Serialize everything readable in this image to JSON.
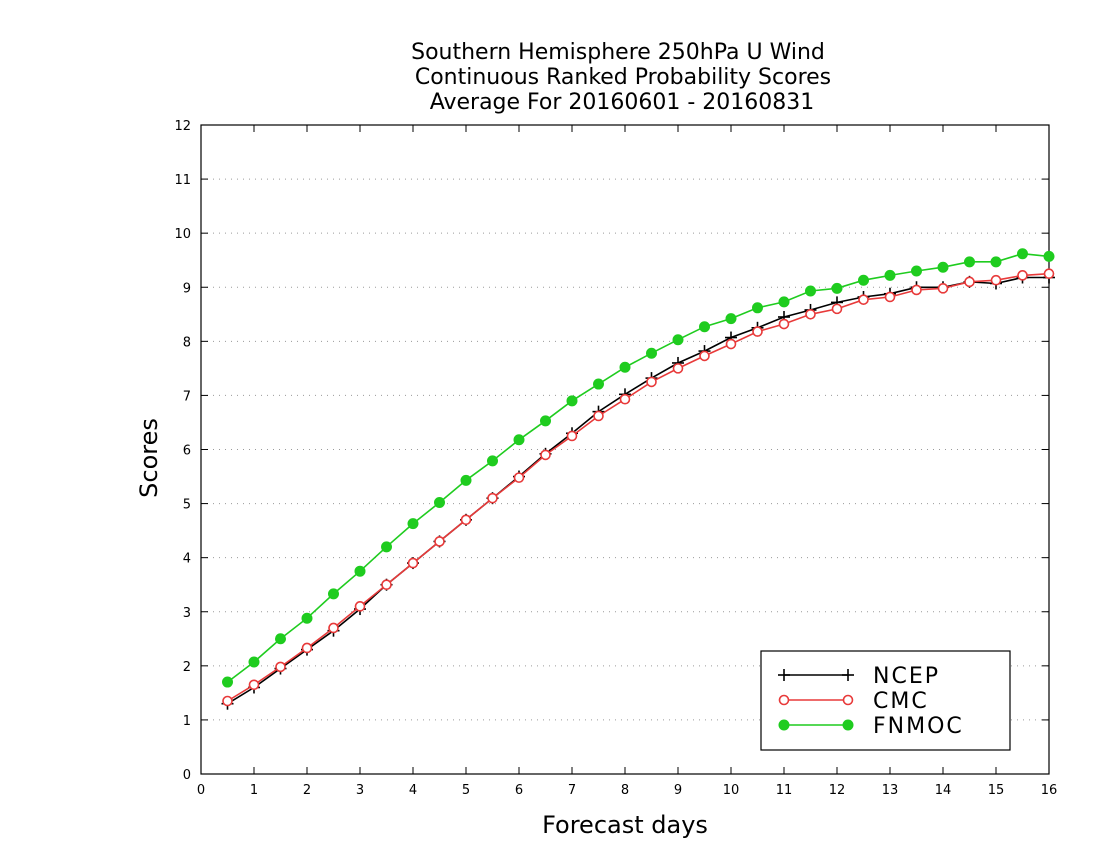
{
  "chart_data": {
    "type": "line",
    "title_lines": [
      "Southern Hemisphere 250hPa U Wind",
      "Continuous Ranked Probability Scores",
      "Average For 20160601 - 20160831"
    ],
    "xlabel": "Forecast days",
    "ylabel": "Scores",
    "xlim": [
      0,
      16
    ],
    "ylim": [
      0,
      12
    ],
    "x_ticks": [
      "0",
      "1",
      "2",
      "3",
      "4",
      "5",
      "6",
      "7",
      "8",
      "9",
      "10",
      "11",
      "12",
      "13",
      "14",
      "15",
      "16"
    ],
    "y_ticks": [
      "0",
      "1",
      "2",
      "3",
      "4",
      "5",
      "6",
      "7",
      "8",
      "9",
      "10",
      "11",
      "12"
    ],
    "grid": "horizontal dotted",
    "legend_position": "bottom-right",
    "x": [
      0.5,
      1,
      1.5,
      2,
      2.5,
      3,
      3.5,
      4,
      4.5,
      5,
      5.5,
      6,
      6.5,
      7,
      7.5,
      8,
      8.5,
      9,
      9.5,
      10,
      10.5,
      11,
      11.5,
      12,
      12.5,
      13,
      13.5,
      14,
      14.5,
      15,
      15.5,
      16
    ],
    "series": [
      {
        "name": "NCEP",
        "color": "#000000",
        "marker": "plus",
        "values": [
          1.3,
          1.6,
          1.95,
          2.3,
          2.65,
          3.05,
          3.5,
          3.9,
          4.3,
          4.7,
          5.1,
          5.5,
          5.92,
          6.3,
          6.7,
          7.02,
          7.32,
          7.6,
          7.82,
          8.07,
          8.25,
          8.45,
          8.58,
          8.72,
          8.82,
          8.88,
          9.0,
          9.0,
          9.1,
          9.07,
          9.18,
          9.18
        ]
      },
      {
        "name": "CMC",
        "color": "#e83a3a",
        "marker": "open-circle",
        "values": [
          1.35,
          1.65,
          1.98,
          2.33,
          2.7,
          3.1,
          3.5,
          3.9,
          4.3,
          4.7,
          5.1,
          5.48,
          5.9,
          6.25,
          6.62,
          6.93,
          7.25,
          7.5,
          7.73,
          7.95,
          8.18,
          8.32,
          8.5,
          8.6,
          8.77,
          8.82,
          8.95,
          8.98,
          9.1,
          9.13,
          9.22,
          9.25
        ]
      },
      {
        "name": "FNMOC",
        "color": "#1fcc1f",
        "marker": "filled-circle",
        "values": [
          1.7,
          2.07,
          2.5,
          2.88,
          3.33,
          3.75,
          4.2,
          4.63,
          5.02,
          5.43,
          5.79,
          6.18,
          6.53,
          6.9,
          7.21,
          7.52,
          7.78,
          8.03,
          8.27,
          8.42,
          8.62,
          8.73,
          8.93,
          8.98,
          9.13,
          9.22,
          9.3,
          9.37,
          9.47,
          9.47,
          9.62,
          9.57
        ]
      }
    ]
  }
}
